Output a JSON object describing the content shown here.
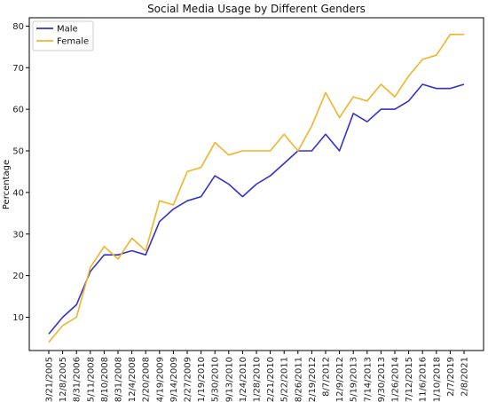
{
  "chart_data": {
    "type": "line",
    "title": "Social Media Usage by Different Genders",
    "xlabel": "",
    "ylabel": "Percentage",
    "ylim": [
      2,
      82
    ],
    "yticks": [
      10,
      20,
      30,
      40,
      50,
      60,
      70,
      80
    ],
    "grid": false,
    "legend": "top-left",
    "x": [
      "3/21/2005",
      "12/8/2005",
      "8/31/2006",
      "5/11/2008",
      "8/10/2008",
      "8/31/2008",
      "12/4/2008",
      "2/20/2008",
      "4/19/2009",
      "9/14/2009",
      "2/27/2009",
      "1/19/2010",
      "5/30/2010",
      "9/13/2010",
      "1/24/2010",
      "1/28/2010",
      "2/21/2010",
      "5/22/2011",
      "8/26/2011",
      "2/19/2012",
      "8/7/2012",
      "12/9/2012",
      "5/19/2013",
      "7/14/2013",
      "9/30/2013",
      "1/26/2014",
      "7/12/2015",
      "11/6/2016",
      "1/10/2018",
      "2/7/2019",
      "2/8/2021"
    ],
    "series": [
      {
        "name": "Male",
        "color": "#3333cc",
        "values": [
          6,
          10,
          13,
          21,
          25,
          25,
          26,
          25,
          33,
          36,
          38,
          39,
          44,
          42,
          39,
          42,
          44,
          47,
          50,
          50,
          54,
          50,
          59,
          57,
          60,
          60,
          62,
          66,
          65,
          65,
          66
        ]
      },
      {
        "name": "Female",
        "color": "#f0b429",
        "values": [
          4,
          8,
          10,
          22,
          27,
          24,
          29,
          26,
          38,
          37,
          45,
          46,
          52,
          49,
          50,
          50,
          50,
          54,
          50,
          56,
          64,
          58,
          63,
          62,
          66,
          63,
          68,
          72,
          73,
          78,
          78
        ]
      }
    ]
  }
}
